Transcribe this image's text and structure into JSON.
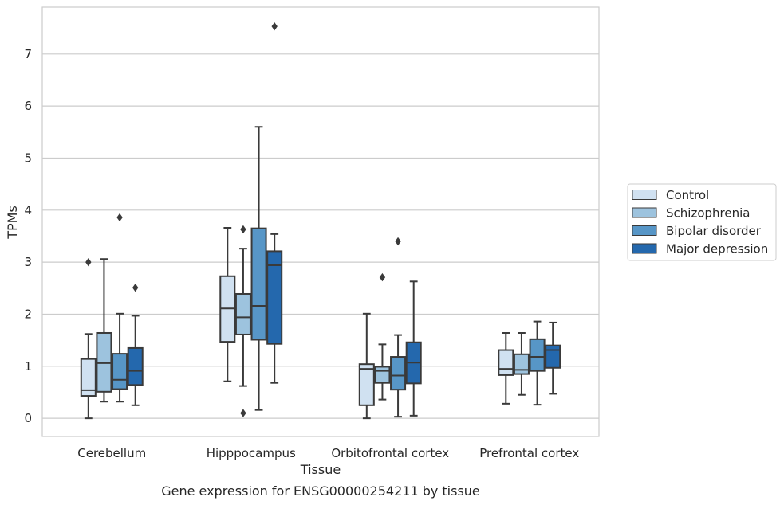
{
  "caption": "Gene expression for ENSG00000254211 by tissue",
  "chart_data": {
    "type": "box",
    "xlabel": "Tissue",
    "ylabel": "TPMs",
    "ylim": [
      -0.35,
      7.9
    ],
    "yticks": [
      0,
      1,
      2,
      3,
      4,
      5,
      6,
      7
    ],
    "grid": "horizontal",
    "legend_position": "right",
    "categories": [
      "Cerebellum",
      "Hipppocampus",
      "Orbitofrontal cortex",
      "Prefrontal cortex"
    ],
    "series": [
      {
        "name": "Control",
        "color": "#d0e1f1",
        "boxes": [
          {
            "whislo": 0.0,
            "q1": 0.43,
            "med": 0.54,
            "q3": 1.14,
            "whishi": 1.62,
            "fliers": [
              3.0
            ]
          },
          {
            "whislo": 0.71,
            "q1": 1.47,
            "med": 2.11,
            "q3": 2.73,
            "whishi": 3.66,
            "fliers": []
          },
          {
            "whislo": 0.0,
            "q1": 0.25,
            "med": 0.95,
            "q3": 1.04,
            "whishi": 2.01,
            "fliers": []
          },
          {
            "whislo": 0.28,
            "q1": 0.83,
            "med": 0.95,
            "q3": 1.31,
            "whishi": 1.64,
            "fliers": []
          }
        ]
      },
      {
        "name": "Schizophrenia",
        "color": "#9dc3de",
        "boxes": [
          {
            "whislo": 0.32,
            "q1": 0.51,
            "med": 1.06,
            "q3": 1.64,
            "whishi": 3.06,
            "fliers": []
          },
          {
            "whislo": 0.62,
            "q1": 1.61,
            "med": 1.94,
            "q3": 2.39,
            "whishi": 3.26,
            "fliers": [
              0.1,
              3.63
            ]
          },
          {
            "whislo": 0.36,
            "q1": 0.68,
            "med": 0.91,
            "q3": 0.99,
            "whishi": 1.42,
            "fliers": [
              2.71
            ]
          },
          {
            "whislo": 0.45,
            "q1": 0.85,
            "med": 0.93,
            "q3": 1.23,
            "whishi": 1.64,
            "fliers": []
          }
        ]
      },
      {
        "name": "Bipolar disorder",
        "color": "#5796c7",
        "boxes": [
          {
            "whislo": 0.32,
            "q1": 0.56,
            "med": 0.74,
            "q3": 1.24,
            "whishi": 2.01,
            "fliers": [
              3.86
            ]
          },
          {
            "whislo": 0.16,
            "q1": 1.51,
            "med": 2.16,
            "q3": 3.65,
            "whishi": 5.6,
            "fliers": []
          },
          {
            "whislo": 0.03,
            "q1": 0.55,
            "med": 0.82,
            "q3": 1.18,
            "whishi": 1.6,
            "fliers": [
              3.4
            ]
          },
          {
            "whislo": 0.26,
            "q1": 0.91,
            "med": 1.18,
            "q3": 1.52,
            "whishi": 1.86,
            "fliers": []
          }
        ]
      },
      {
        "name": "Major depression",
        "color": "#2468ad",
        "boxes": [
          {
            "whislo": 0.25,
            "q1": 0.64,
            "med": 0.91,
            "q3": 1.35,
            "whishi": 1.97,
            "fliers": [
              2.51
            ]
          },
          {
            "whislo": 0.68,
            "q1": 1.43,
            "med": 2.94,
            "q3": 3.21,
            "whishi": 3.54,
            "fliers": [
              7.53
            ]
          },
          {
            "whislo": 0.05,
            "q1": 0.67,
            "med": 1.07,
            "q3": 1.46,
            "whishi": 2.63,
            "fliers": []
          },
          {
            "whislo": 0.47,
            "q1": 0.97,
            "med": 1.31,
            "q3": 1.4,
            "whishi": 1.84,
            "fliers": []
          }
        ]
      }
    ]
  }
}
